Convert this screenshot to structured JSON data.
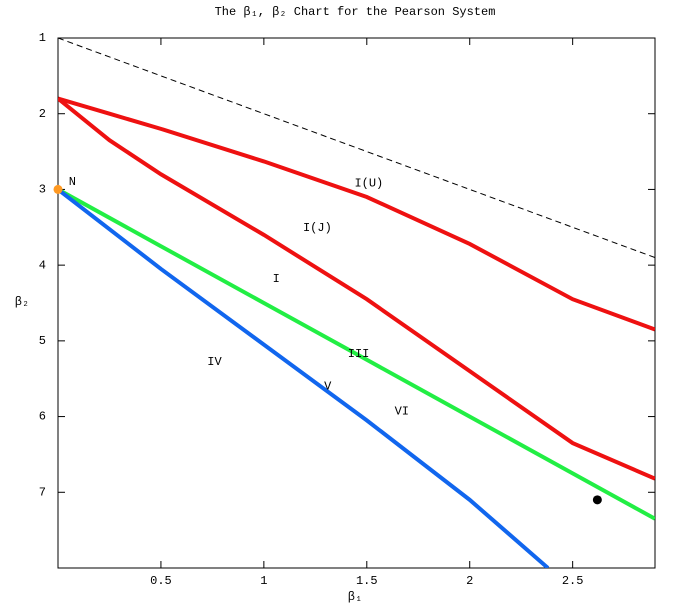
{
  "chart_data": {
    "type": "line",
    "title": "The β₁, β₂ Chart for the Pearson System",
    "x_label": "β₁",
    "y_label": "β₂",
    "xlim": [
      0,
      2.9
    ],
    "ylim": [
      1,
      8
    ],
    "y_inverted": true,
    "xticks": [
      0.5,
      1,
      1.5,
      2,
      2.5
    ],
    "yticks": [
      1,
      2,
      3,
      4,
      5,
      6,
      7
    ],
    "series": [
      {
        "color": "#000000",
        "dash": true,
        "x": [
          0,
          2.9
        ],
        "values": [
          1,
          3.9
        ]
      },
      {
        "color": "#ee1111",
        "x": [
          0,
          0.25,
          0.5,
          1,
          1.5,
          2,
          2.5,
          2.9
        ],
        "values": [
          1.8,
          2.0,
          2.2,
          2.63,
          3.1,
          3.72,
          4.45,
          4.85
        ]
      },
      {
        "color": "#ee1111",
        "x": [
          0,
          0.25,
          0.5,
          1,
          1.5,
          2,
          2.5,
          2.9
        ],
        "values": [
          1.8,
          2.35,
          2.8,
          3.6,
          4.45,
          5.4,
          6.35,
          6.82
        ]
      },
      {
        "color": "#22ee44",
        "x": [
          0,
          0.5,
          1,
          1.5,
          2,
          2.5,
          2.9
        ],
        "values": [
          3,
          3.75,
          4.5,
          5.25,
          6,
          6.75,
          7.35
        ]
      },
      {
        "color": "#1166ee",
        "x": [
          0,
          0.5,
          1,
          1.5,
          2,
          2.38
        ],
        "values": [
          3,
          4.05,
          5.05,
          6.05,
          7.1,
          8
        ]
      }
    ],
    "points": [
      {
        "x": 0,
        "y": 3,
        "color": "#ff9922"
      },
      {
        "x": 2.62,
        "y": 7.1,
        "color": "#000000"
      }
    ],
    "annotations": [
      {
        "text": "N",
        "x": 0.07,
        "y": 2.9
      },
      {
        "text": "I(U)",
        "x": 1.51,
        "y": 2.92
      },
      {
        "text": "I(J)",
        "x": 1.26,
        "y": 3.51
      },
      {
        "text": "I",
        "x": 1.06,
        "y": 4.18
      },
      {
        "text": "III",
        "x": 1.46,
        "y": 5.17
      },
      {
        "text": "IV",
        "x": 0.76,
        "y": 5.28
      },
      {
        "text": "V",
        "x": 1.31,
        "y": 5.6
      },
      {
        "text": "VI",
        "x": 1.67,
        "y": 5.93
      }
    ]
  }
}
